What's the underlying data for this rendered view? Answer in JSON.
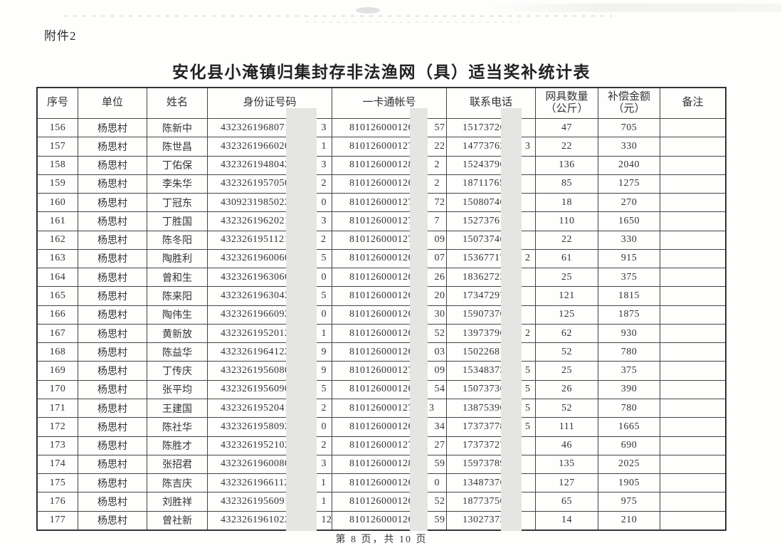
{
  "page": {
    "attachment_label": "附件2",
    "title": "安化县小淹镇归集封存非法渔网（具）适当奖补统计表",
    "footer": "第 8 页，共 10 页"
  },
  "redaction_color": "#e5e5e3",
  "table": {
    "headers": [
      {
        "label": "序号"
      },
      {
        "label": "单位"
      },
      {
        "label": "姓名"
      },
      {
        "label": "身份证号码"
      },
      {
        "label": "一卡通帐号"
      },
      {
        "label": "联系电话"
      },
      {
        "label": "网具数量",
        "label2": "（公斤）"
      },
      {
        "label": "补偿金额",
        "label2": "（元）"
      },
      {
        "label": "备注"
      }
    ],
    "rows": [
      {
        "no": "156",
        "unit": "杨思村",
        "name": "陈新中",
        "id_prefix": "4323261968071",
        "id_suffix": "3",
        "acct_prefix": "8101260001269",
        "acct_suffix": "57",
        "phone_prefix": "15173726",
        "phone_suffix": "",
        "qty": "47",
        "amount": "705",
        "remark": ""
      },
      {
        "no": "157",
        "unit": "杨思村",
        "name": "陈世昌",
        "id_prefix": "4323261966020",
        "id_suffix": "1",
        "acct_prefix": "8101260001270",
        "acct_suffix": "22",
        "phone_prefix": "14773762",
        "phone_suffix": "3",
        "qty": "22",
        "amount": "330",
        "remark": ""
      },
      {
        "no": "158",
        "unit": "杨思村",
        "name": "丁佑保",
        "id_prefix": "4323261948042",
        "id_suffix": "3",
        "acct_prefix": "8101260001281",
        "acct_suffix": "2",
        "phone_prefix": "15243796",
        "phone_suffix": "",
        "qty": "136",
        "amount": "2040",
        "remark": ""
      },
      {
        "no": "159",
        "unit": "杨思村",
        "name": "李朱华",
        "id_prefix": "4323261957050",
        "id_suffix": "2",
        "acct_prefix": "8101260001264",
        "acct_suffix": "2",
        "phone_prefix": "18711765",
        "phone_suffix": "",
        "qty": "85",
        "amount": "1275",
        "remark": ""
      },
      {
        "no": "160",
        "unit": "杨思村",
        "name": "丁冠东",
        "id_prefix": "4309231985022",
        "id_suffix": "0",
        "acct_prefix": "8101260001275",
        "acct_suffix": "72",
        "phone_prefix": "15080746",
        "phone_suffix": "",
        "qty": "18",
        "amount": "270",
        "remark": ""
      },
      {
        "no": "161",
        "unit": "杨思村",
        "name": "丁胜国",
        "id_prefix": "4323261962021",
        "id_suffix": "3",
        "acct_prefix": "8101260001270",
        "acct_suffix": "7",
        "phone_prefix": "15273761",
        "phone_suffix": "",
        "qty": "110",
        "amount": "1650",
        "remark": ""
      },
      {
        "no": "162",
        "unit": "杨思村",
        "name": "陈冬阳",
        "id_prefix": "4323261951121",
        "id_suffix": "2",
        "acct_prefix": "8101260001271",
        "acct_suffix": "09",
        "phone_prefix": "15073746",
        "phone_suffix": "",
        "qty": "22",
        "amount": "330",
        "remark": ""
      },
      {
        "no": "163",
        "unit": "杨思村",
        "name": "陶胜利",
        "id_prefix": "4323261960060",
        "id_suffix": "5",
        "acct_prefix": "8101260001265",
        "acct_suffix": "07",
        "phone_prefix": "15367717",
        "phone_suffix": "2",
        "qty": "61",
        "amount": "915",
        "remark": ""
      },
      {
        "no": "164",
        "unit": "杨思村",
        "name": "曾和生",
        "id_prefix": "4323261963060",
        "id_suffix": "0",
        "acct_prefix": "8101260001268",
        "acct_suffix": "26",
        "phone_prefix": "18362723",
        "phone_suffix": "",
        "qty": "25",
        "amount": "375",
        "remark": ""
      },
      {
        "no": "165",
        "unit": "杨思村",
        "name": "陈来阳",
        "id_prefix": "4323261963042",
        "id_suffix": "5",
        "acct_prefix": "8101260001264",
        "acct_suffix": "20",
        "phone_prefix": "17347297",
        "phone_suffix": "",
        "qty": "121",
        "amount": "1815",
        "remark": ""
      },
      {
        "no": "166",
        "unit": "杨思村",
        "name": "陶伟生",
        "id_prefix": "4323261966092",
        "id_suffix": "0",
        "acct_prefix": "8101260001265",
        "acct_suffix": "30",
        "phone_prefix": "15907376",
        "phone_suffix": "",
        "qty": "125",
        "amount": "1875",
        "remark": ""
      },
      {
        "no": "167",
        "unit": "杨思村",
        "name": "黄新放",
        "id_prefix": "4323261952012",
        "id_suffix": "1",
        "acct_prefix": "8101260001268",
        "acct_suffix": "52",
        "phone_prefix": "13973796",
        "phone_suffix": "2",
        "qty": "62",
        "amount": "930",
        "remark": ""
      },
      {
        "no": "168",
        "unit": "杨思村",
        "name": "陈益华",
        "id_prefix": "4323261964122",
        "id_suffix": "9",
        "acct_prefix": "8101260001266",
        "acct_suffix": "03",
        "phone_prefix": "15022681",
        "phone_suffix": "",
        "qty": "52",
        "amount": "780",
        "remark": ""
      },
      {
        "no": "169",
        "unit": "杨思村",
        "name": "丁传庆",
        "id_prefix": "4323261956080",
        "id_suffix": "9",
        "acct_prefix": "8101260001271",
        "acct_suffix": "09",
        "phone_prefix": "15348373",
        "phone_suffix": "5",
        "qty": "25",
        "amount": "375",
        "remark": ""
      },
      {
        "no": "170",
        "unit": "杨思村",
        "name": "张平均",
        "id_prefix": "4323261956090",
        "id_suffix": "5",
        "acct_prefix": "8101260001269",
        "acct_suffix": "54",
        "phone_prefix": "15073736",
        "phone_suffix": "5",
        "qty": "26",
        "amount": "390",
        "remark": ""
      },
      {
        "no": "171",
        "unit": "杨思村",
        "name": "王建国",
        "id_prefix": "4323261952041",
        "id_suffix": "2",
        "acct_prefix": "810126000127",
        "acct_suffix": "3",
        "phone_prefix": "13875396",
        "phone_suffix": "5",
        "qty": "52",
        "amount": "780",
        "remark": ""
      },
      {
        "no": "172",
        "unit": "杨思村",
        "name": "陈社华",
        "id_prefix": "4323261958092",
        "id_suffix": "0",
        "acct_prefix": "8101260001269",
        "acct_suffix": "34",
        "phone_prefix": "17373778",
        "phone_suffix": "5",
        "qty": "111",
        "amount": "1665",
        "remark": ""
      },
      {
        "no": "173",
        "unit": "杨思村",
        "name": "陈胜才",
        "id_prefix": "4323261952102",
        "id_suffix": "2",
        "acct_prefix": "8101260001271",
        "acct_suffix": "27",
        "phone_prefix": "17373727",
        "phone_suffix": "",
        "qty": "46",
        "amount": "690",
        "remark": ""
      },
      {
        "no": "174",
        "unit": "杨思村",
        "name": "张招君",
        "id_prefix": "4323261960080",
        "id_suffix": "3",
        "acct_prefix": "8101260001280",
        "acct_suffix": "59",
        "phone_prefix": "15973789",
        "phone_suffix": "",
        "qty": "135",
        "amount": "2025",
        "remark": ""
      },
      {
        "no": "175",
        "unit": "杨思村",
        "name": "陈吉庆",
        "id_prefix": "4323261966112",
        "id_suffix": "1",
        "acct_prefix": "8101260001265",
        "acct_suffix": "0",
        "phone_prefix": "13487376",
        "phone_suffix": "",
        "qty": "127",
        "amount": "1905",
        "remark": ""
      },
      {
        "no": "176",
        "unit": "杨思村",
        "name": "刘胜祥",
        "id_prefix": "4323261956091",
        "id_suffix": "1",
        "acct_prefix": "8101260001264",
        "acct_suffix": "52",
        "phone_prefix": "18773750",
        "phone_suffix": "",
        "qty": "65",
        "amount": "975",
        "remark": ""
      },
      {
        "no": "177",
        "unit": "杨思村",
        "name": "曾社新",
        "id_prefix": "4323261961022",
        "id_suffix": "12",
        "acct_prefix": "8101260001268",
        "acct_suffix": "59",
        "phone_prefix": "13027373",
        "phone_suffix": "",
        "qty": "14",
        "amount": "210",
        "remark": ""
      }
    ]
  }
}
